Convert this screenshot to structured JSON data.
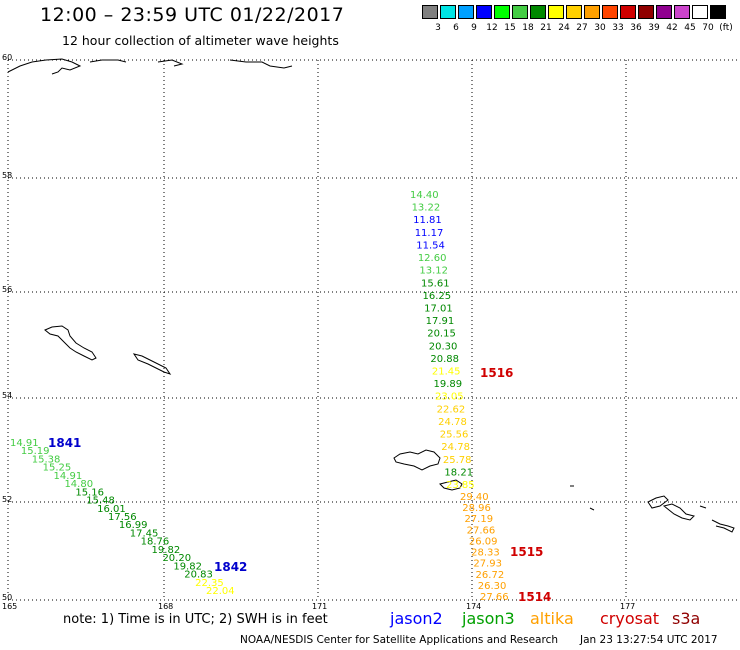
{
  "header": {
    "title": "12:00 – 23:59 UTC 01/22/2017",
    "subtitle": "12 hour collection of altimeter wave heights"
  },
  "colorscale": {
    "colors": [
      "#808080",
      "#00e5e5",
      "#00a0ff",
      "#0000ff",
      "#00ff00",
      "#44cc44",
      "#008800",
      "#ffff00",
      "#ffd000",
      "#ffa000",
      "#ff4500",
      "#d00000",
      "#900000",
      "#900090",
      "#cc44cc",
      "#ffffff",
      "#000000"
    ],
    "labels": [
      "3",
      "6",
      "9",
      "12",
      "15",
      "18",
      "21",
      "24",
      "27",
      "30",
      "33",
      "36",
      "39",
      "42",
      "45",
      "70",
      "(ft)"
    ]
  },
  "axes": {
    "lat_labels": [
      "60",
      "58",
      "56",
      "54",
      "52",
      "50"
    ],
    "lon_labels": [
      "165",
      "168",
      "171",
      "174",
      "177"
    ]
  },
  "tracks": [
    {
      "satellite": "jason2",
      "values": [
        "14.91",
        "15.19",
        "15.38",
        "15.25",
        "14.91",
        "14.80",
        "15.16",
        "15.48",
        "16.01",
        "17.56",
        "16.99",
        "17.45",
        "18.76",
        "19.82",
        "20.20",
        "19.82",
        "20.83",
        "22.35",
        "22.04"
      ],
      "colors": [
        "#44cc44",
        "#44cc44",
        "#44cc44",
        "#44cc44",
        "#44cc44",
        "#44cc44",
        "#008800",
        "#008800",
        "#008800",
        "#008800",
        "#008800",
        "#008800",
        "#008800",
        "#008800",
        "#008800",
        "#008800",
        "#008800",
        "#ffff00",
        "#ffff00"
      ]
    },
    {
      "satellite": "jason3",
      "values": [
        "14.40",
        "13.22",
        "11.81",
        "11.17",
        "11.54",
        "12.60",
        "13.12",
        "15.61",
        "16.25",
        "17.01",
        "17.91",
        "20.15",
        "20.30",
        "20.88",
        "21.45",
        "19.89",
        "23.05",
        "22.62",
        "24.78",
        "25.56",
        "24.78",
        "25.78",
        "18.21",
        "23.85"
      ],
      "colors": [
        "#44cc44",
        "#44cc44",
        "#0000ff",
        "#0000ff",
        "#0000ff",
        "#44cc44",
        "#44cc44",
        "#008800",
        "#008800",
        "#008800",
        "#008800",
        "#008800",
        "#008800",
        "#008800",
        "#ffff00",
        "#008800",
        "#ffff00",
        "#ffd000",
        "#ffd000",
        "#ffd000",
        "#ffd000",
        "#ffd000",
        "#008800",
        "#ffff00"
      ]
    },
    {
      "satellite": "altika",
      "values": [
        "29.40",
        "28.96",
        "27.19",
        "27.66",
        "26.09",
        "28.33",
        "27.93",
        "26.72",
        "26.30",
        "27.66"
      ],
      "colors": [
        "#ffa000",
        "#ffa000",
        "#ffa000",
        "#ffa000",
        "#ffa000",
        "#ffa000",
        "#ffa000",
        "#ffa000",
        "#ffa000",
        "#ffa000"
      ]
    }
  ],
  "time_markers": [
    {
      "text": "1841",
      "color": "#0000cc"
    },
    {
      "text": "1842",
      "color": "#0000cc"
    },
    {
      "text": "1516",
      "color": "#d00000"
    },
    {
      "text": "1515",
      "color": "#d00000"
    },
    {
      "text": "1514",
      "color": "#d00000"
    }
  ],
  "note": "note:  1) Time is in UTC;  2) SWH is in feet",
  "legend": [
    {
      "name": "jason2",
      "color": "#0000ff"
    },
    {
      "name": "jason3",
      "color": "#00a000"
    },
    {
      "name": "altika",
      "color": "#ffa000"
    },
    {
      "name": "cryosat",
      "color": "#d00000"
    },
    {
      "name": "s3a",
      "color": "#900000"
    }
  ],
  "footer": "NOAA/NESDIS Center for Satellite Applications and Research",
  "footer_time": "Jan 23 13:27:54 UTC 2017"
}
